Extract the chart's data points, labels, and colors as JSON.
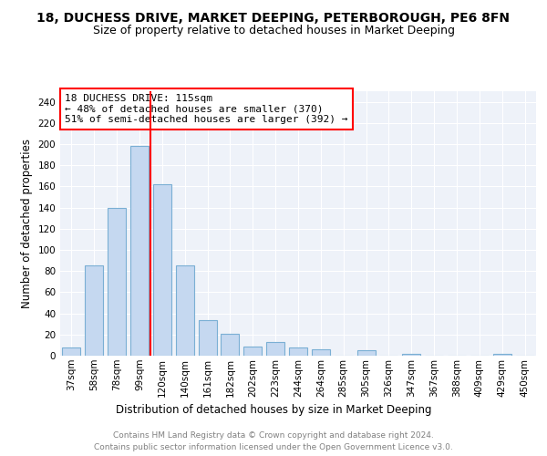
{
  "title": "18, DUCHESS DRIVE, MARKET DEEPING, PETERBOROUGH, PE6 8FN",
  "subtitle": "Size of property relative to detached houses in Market Deeping",
  "xlabel": "Distribution of detached houses by size in Market Deeping",
  "ylabel": "Number of detached properties",
  "categories": [
    "37sqm",
    "58sqm",
    "78sqm",
    "99sqm",
    "120sqm",
    "140sqm",
    "161sqm",
    "182sqm",
    "202sqm",
    "223sqm",
    "244sqm",
    "264sqm",
    "285sqm",
    "305sqm",
    "326sqm",
    "347sqm",
    "367sqm",
    "388sqm",
    "409sqm",
    "429sqm",
    "450sqm"
  ],
  "values": [
    8,
    85,
    140,
    198,
    162,
    85,
    34,
    21,
    9,
    13,
    8,
    6,
    0,
    5,
    0,
    2,
    0,
    0,
    0,
    2,
    0
  ],
  "bar_color": "#c5d8f0",
  "bar_edge_color": "#7aafd4",
  "property_line_color": "red",
  "property_line_x": 3.5,
  "annotation_box_text": "18 DUCHESS DRIVE: 115sqm\n← 48% of detached houses are smaller (370)\n51% of semi-detached houses are larger (392) →",
  "ylim": [
    0,
    250
  ],
  "yticks": [
    0,
    20,
    40,
    60,
    80,
    100,
    120,
    140,
    160,
    180,
    200,
    220,
    240
  ],
  "footer_line1": "Contains HM Land Registry data © Crown copyright and database right 2024.",
  "footer_line2": "Contains public sector information licensed under the Open Government Licence v3.0.",
  "background_color": "#eef2f9",
  "grid_color": "#ffffff",
  "title_fontsize": 10,
  "subtitle_fontsize": 9,
  "axis_label_fontsize": 8.5,
  "tick_fontsize": 7.5,
  "annotation_fontsize": 8,
  "footer_fontsize": 6.5
}
